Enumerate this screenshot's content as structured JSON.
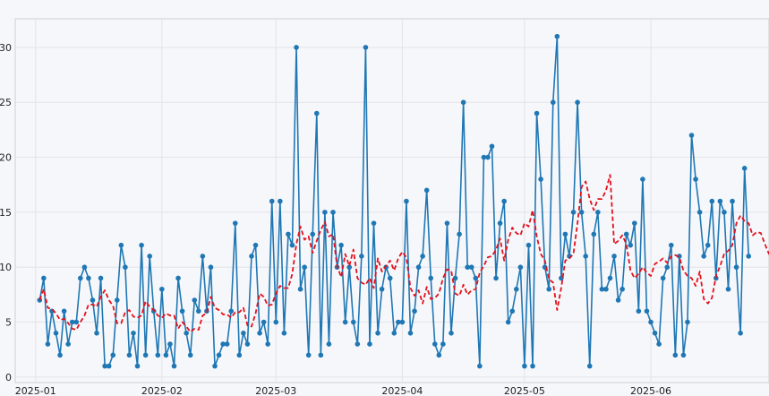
{
  "chart_data": {
    "type": "line",
    "title": "",
    "xlabel": "",
    "ylabel": "",
    "x_start": "2025-01-02",
    "x_end": "2025-06-30",
    "xlim": [
      "2024-12-27",
      "2025-06-30"
    ],
    "ylim": [
      -0.5,
      32.6
    ],
    "grid": true,
    "x_ticks": [
      {
        "date": "2025-01-01",
        "label": "2025-01"
      },
      {
        "date": "2025-02-01",
        "label": "2025-02"
      },
      {
        "date": "2025-03-01",
        "label": "2025-03"
      },
      {
        "date": "2025-04-01",
        "label": "2025-04"
      },
      {
        "date": "2025-05-01",
        "label": "2025-05"
      },
      {
        "date": "2025-06-01",
        "label": "2025-06"
      }
    ],
    "y_ticks": [
      0,
      5,
      10,
      15,
      20,
      25,
      30
    ],
    "series": [
      {
        "style": "line-markers",
        "color": "#1f77b4",
        "values": [
          7,
          9,
          3,
          6,
          4,
          2,
          6,
          3,
          5,
          5,
          9,
          10,
          9,
          7,
          4,
          9,
          1,
          1,
          2,
          7,
          12,
          10,
          2,
          4,
          1,
          12,
          2,
          11,
          6,
          2,
          8,
          2,
          3,
          1,
          9,
          6,
          4,
          2,
          7,
          6,
          11,
          6,
          10,
          1,
          2,
          3,
          3,
          6,
          14,
          2,
          4,
          3,
          11,
          12,
          4,
          5,
          3,
          16,
          5,
          16,
          4,
          13,
          12,
          30,
          8,
          10,
          2,
          13,
          24,
          2,
          15,
          3,
          15,
          10,
          12,
          5,
          10,
          5,
          3,
          11,
          30,
          3,
          14,
          4,
          8,
          10,
          9,
          4,
          5,
          5,
          16,
          4,
          6,
          10,
          11,
          17,
          9,
          3,
          2,
          3,
          14,
          4,
          9,
          13,
          25,
          10,
          10,
          9,
          1,
          20,
          20,
          21,
          9,
          14,
          16,
          5,
          6,
          8,
          10,
          1,
          12,
          1,
          24,
          18,
          10,
          8,
          25,
          31,
          9,
          13,
          11,
          15,
          25,
          15,
          11,
          1,
          13,
          15,
          8,
          8,
          9,
          11,
          7,
          8,
          13,
          12,
          14,
          6,
          18,
          6,
          5,
          4,
          3,
          9,
          10,
          12,
          2,
          11,
          2,
          5,
          22,
          18,
          15,
          11,
          12,
          16,
          9,
          16,
          15,
          8,
          16,
          10,
          4,
          19,
          11
        ]
      },
      {
        "style": "dashed",
        "color": "#e3111b",
        "values": [
          7.0,
          8.0,
          6.3,
          6.2,
          5.8,
          5.2,
          5.3,
          4.9,
          4.4,
          4.3,
          5.0,
          5.6,
          6.6,
          6.6,
          6.4,
          7.3,
          7.9,
          7.0,
          6.5,
          4.9,
          4.9,
          5.9,
          6.1,
          5.5,
          5.4,
          5.6,
          6.9,
          6.4,
          6.1,
          5.6,
          5.4,
          5.8,
          5.6,
          5.6,
          4.4,
          5.0,
          4.6,
          4.1,
          4.4,
          4.3,
          5.6,
          5.8,
          7.3,
          6.3,
          6.1,
          5.7,
          5.7,
          5.4,
          5.9,
          5.9,
          6.3,
          4.7,
          4.6,
          5.8,
          7.6,
          7.3,
          6.5,
          6.6,
          7.6,
          8.3,
          8.1,
          8.1,
          9.4,
          12.1,
          13.7,
          12.5,
          12.8,
          11.3,
          12.4,
          13.4,
          14.1,
          12.8,
          13.0,
          10.1,
          9.1,
          11.2,
          10.1,
          11.6,
          9.0,
          8.6,
          8.4,
          9.0,
          8.1,
          10.8,
          9.6,
          10.1,
          10.6,
          9.7,
          10.8,
          11.4,
          10.9,
          8.1,
          7.4,
          7.9,
          6.7,
          8.2,
          7.1,
          7.2,
          7.6,
          9.0,
          9.8,
          9.7,
          7.6,
          7.4,
          8.4,
          7.5,
          7.9,
          8.0,
          9.5,
          10.1,
          10.9,
          11.0,
          11.6,
          12.6,
          10.6,
          12.5,
          13.6,
          13.1,
          12.9,
          14.0,
          13.7,
          15.2,
          12.8,
          11.2,
          10.6,
          8.9,
          8.6,
          6.1,
          8.1,
          10.6,
          10.8,
          11.2,
          14.0,
          17.3,
          17.8,
          16.2,
          15.2,
          16.2,
          16.2,
          17.0,
          18.4,
          12.1,
          12.4,
          12.9,
          12.1,
          9.7,
          9.0,
          9.4,
          10.0,
          9.5,
          9.2,
          10.3,
          10.5,
          10.8,
          10.4,
          11.0,
          11.1,
          10.9,
          9.7,
          9.2,
          9.0,
          8.3,
          9.6,
          7.1,
          6.7,
          7.2,
          9.2,
          10.1,
          11.2,
          11.5,
          12.0,
          14.0,
          14.7,
          14.2,
          14.0,
          12.9,
          13.2,
          13.1,
          12.1,
          11.2,
          12.6
        ]
      }
    ]
  }
}
